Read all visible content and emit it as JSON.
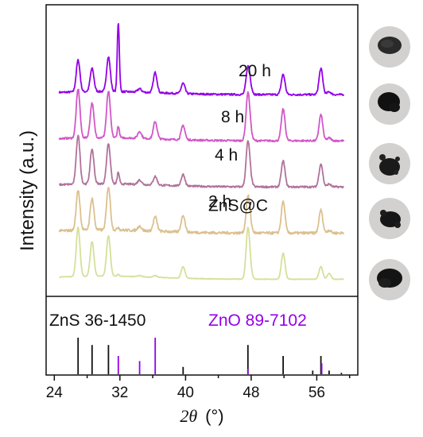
{
  "chart_data": {
    "type": "line",
    "title": "",
    "xlabel": "2θ (°)",
    "xlabel_symbol": "2θ",
    "xlabel_unit": "(°)",
    "ylabel": "Intensity (a.u.)",
    "xlim": [
      23,
      61
    ],
    "xticks": [
      24,
      32,
      40,
      48,
      56
    ],
    "grid": false,
    "legend": "none",
    "series": [
      {
        "name": "20 h",
        "color": "#9400e8",
        "offset": 0.8
      },
      {
        "name": "8 h",
        "color": "#d257c8",
        "offset": 0.6
      },
      {
        "name": "4 h",
        "color": "#b0729c",
        "offset": 0.4
      },
      {
        "name": "2 h",
        "color": "#dcc08e",
        "offset": 0.2
      },
      {
        "name": "ZnS@C",
        "color": "#d4e09a",
        "offset": 0.0
      }
    ],
    "peaks": [
      {
        "x": 26.9,
        "heights": [
          0.55,
          0.85,
          0.85,
          0.7,
          0.85
        ]
      },
      {
        "x": 28.6,
        "heights": [
          0.4,
          0.6,
          0.6,
          0.55,
          0.6
        ]
      },
      {
        "x": 30.6,
        "heights": [
          0.6,
          0.8,
          0.7,
          0.75,
          0.7
        ]
      },
      {
        "x": 31.8,
        "heights": [
          1.2,
          0.2,
          0.2,
          0.05,
          0.03
        ]
      },
      {
        "x": 34.4,
        "heights": [
          0.06,
          0.12,
          0.08,
          0.08,
          0.02
        ]
      },
      {
        "x": 36.3,
        "heights": [
          0.35,
          0.3,
          0.15,
          0.25,
          0.03
        ]
      },
      {
        "x": 39.7,
        "heights": [
          0.18,
          0.25,
          0.2,
          0.3,
          0.2
        ]
      },
      {
        "x": 47.6,
        "heights": [
          0.45,
          0.8,
          0.75,
          0.6,
          0.85
        ]
      },
      {
        "x": 47.9,
        "heights": [
          0.1,
          0.1,
          0.1,
          0.1,
          0.1
        ]
      },
      {
        "x": 51.9,
        "heights": [
          0.35,
          0.55,
          0.45,
          0.55,
          0.45
        ]
      },
      {
        "x": 56.5,
        "heights": [
          0.45,
          0.45,
          0.4,
          0.4,
          0.22
        ]
      },
      {
        "x": 57.5,
        "heights": [
          0.05,
          0.05,
          0.05,
          0.05,
          0.1
        ]
      }
    ],
    "reference": {
      "zns": {
        "label": "ZnS 36-1450",
        "color": "#111111",
        "x": [
          26.9,
          28.6,
          30.6,
          39.7,
          47.6,
          51.9,
          55.5,
          56.5,
          57.5,
          59.0
        ],
        "values": [
          1.0,
          0.8,
          0.8,
          0.2,
          0.8,
          0.5,
          0.1,
          0.5,
          0.1,
          0.04
        ]
      },
      "zno": {
        "label": "ZnO 89-7102",
        "color": "#9400e8",
        "x": [
          31.8,
          34.4,
          36.3,
          47.6,
          56.6
        ],
        "values": [
          0.5,
          0.36,
          1.0,
          0.15,
          0.3
        ]
      }
    }
  }
}
